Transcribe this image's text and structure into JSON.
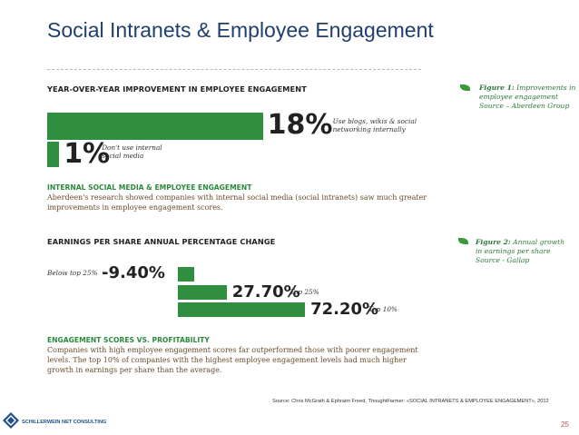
{
  "slide": {
    "title": "Social Intranets & Employee Engagement",
    "source": "Source: Chris McGrath & Ephraim Freed, ThoughtFarmer: «SOCIAL INTRANETS & EMPLOYEE ENGAGEMENT», 2012",
    "page_number": "25",
    "logo_text": "SCHILLERWEIN NET CONSULTING"
  },
  "section1": {
    "heading": "YEAR-OVER-YEAR IMPROVEMENT IN EMPLOYEE ENGAGEMENT",
    "sub_heading": "INTERNAL SOCIAL MEDIA & EMPLOYEE ENGAGEMENT",
    "body_line1": "Aberdeen's research showed companies with internal social media (social intranets) saw much greater",
    "body_line2": "improvements in employee engagement scores."
  },
  "section2": {
    "heading": "EARNINGS PER SHARE ANNUAL PERCENTAGE CHANGE",
    "sub_heading": "ENGAGEMENT SCORES VS. PROFITABILITY",
    "body_line1": "Companies with high employee engagement scores far outperformed those with poorer engagement",
    "body_line2": "levels. The top 10% of companies with the highest employee engagement levels had much higher",
    "body_line3": "growth in earnings per share than the average."
  },
  "figure1": {
    "label": "Figure 1:",
    "line1": "Improvements in",
    "line2": "employee engagement",
    "line3": "Source – Aberdeen Group"
  },
  "figure2": {
    "label": "Figure 2:",
    "line1": "Annual growth",
    "line2": "in earnings per share",
    "line3": "Source - Gallap"
  },
  "chart_data": [
    {
      "type": "bar",
      "orientation": "horizontal",
      "values": [
        18,
        1
      ],
      "value_labels": [
        "18%",
        "1%"
      ],
      "categories": [
        "Use blogs, wikis & social networking internally",
        "Don't use internal social media"
      ],
      "category_lines": [
        [
          "Use blogs, wikis & social",
          "networking internally"
        ],
        [
          "Don't use internal",
          "social media"
        ]
      ]
    },
    {
      "type": "bar",
      "orientation": "horizontal",
      "values": [
        -9.4,
        27.7,
        72.2
      ],
      "value_labels": [
        "-9.40%",
        "27.70%",
        "72.20%"
      ],
      "categories": [
        "Below top 25%",
        "Top 25%",
        "Top 10%"
      ]
    }
  ],
  "colors": {
    "bar": "#2f8f3e",
    "title": "#1f3f6e",
    "subheading": "#2a8a3a",
    "page_number": "#c0504d"
  }
}
